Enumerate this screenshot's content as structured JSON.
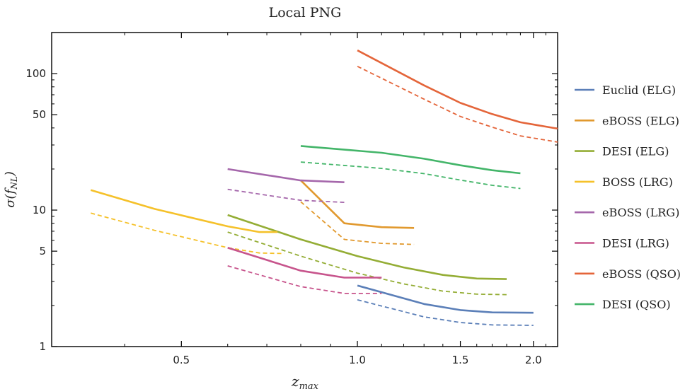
{
  "chart_data": {
    "type": "line",
    "title": "Local PNG",
    "xlabel": "z_max",
    "ylabel": "σ(f_NL)",
    "x_scale": "log",
    "y_scale": "log",
    "xlim": [
      0.3,
      2.2
    ],
    "ylim": [
      1,
      200
    ],
    "xticks": [
      {
        "value": 0.5,
        "label": "0.5"
      },
      {
        "value": 1.0,
        "label": "1.0"
      },
      {
        "value": 1.5,
        "label": "1.5"
      },
      {
        "value": 2.0,
        "label": "2.0"
      }
    ],
    "yticks": [
      {
        "value": 1,
        "label": "1"
      },
      {
        "value": 5,
        "label": "5"
      },
      {
        "value": 10,
        "label": "10"
      },
      {
        "value": 50,
        "label": "50"
      },
      {
        "value": 100,
        "label": "100"
      }
    ],
    "legend_position": "right",
    "linestyle_note": "solid and dashed lines per survey",
    "series": [
      {
        "name": "Euclid (ELG)",
        "color": "#5B7FB8",
        "solid": {
          "x": [
            1.0,
            1.3,
            1.5,
            1.7,
            2.0
          ],
          "y": [
            2.8,
            2.05,
            1.85,
            1.78,
            1.77
          ]
        },
        "dashed": {
          "x": [
            1.0,
            1.3,
            1.5,
            1.7,
            2.0
          ],
          "y": [
            2.2,
            1.65,
            1.5,
            1.44,
            1.43
          ]
        }
      },
      {
        "name": "eBOSS (ELG)",
        "color": "#E1992E",
        "solid": {
          "x": [
            0.8,
            0.95,
            1.1,
            1.25
          ],
          "y": [
            16.5,
            8.0,
            7.5,
            7.4
          ]
        },
        "dashed": {
          "x": [
            0.8,
            0.95,
            1.1,
            1.25
          ],
          "y": [
            11.5,
            6.1,
            5.7,
            5.6
          ]
        }
      },
      {
        "name": "DESI (ELG)",
        "color": "#94AD35",
        "solid": {
          "x": [
            0.6,
            0.8,
            1.0,
            1.2,
            1.4,
            1.6,
            1.8
          ],
          "y": [
            9.2,
            6.1,
            4.6,
            3.8,
            3.35,
            3.15,
            3.12
          ]
        },
        "dashed": {
          "x": [
            0.6,
            0.8,
            1.0,
            1.2,
            1.4,
            1.6,
            1.8
          ],
          "y": [
            6.9,
            4.6,
            3.45,
            2.88,
            2.55,
            2.42,
            2.4
          ]
        }
      },
      {
        "name": "BOSS (LRG)",
        "color": "#F5C12A",
        "solid": {
          "x": [
            0.35,
            0.45,
            0.6,
            0.68,
            0.73
          ],
          "y": [
            14.0,
            10.2,
            7.6,
            6.9,
            6.9
          ]
        },
        "dashed": {
          "x": [
            0.35,
            0.45,
            0.6,
            0.68,
            0.75
          ],
          "y": [
            9.5,
            7.1,
            5.3,
            4.85,
            4.8
          ]
        }
      },
      {
        "name": "eBOSS (LRG)",
        "color": "#A567AB",
        "solid": {
          "x": [
            0.6,
            0.8,
            0.95
          ],
          "y": [
            20.0,
            16.5,
            16.0
          ]
        },
        "dashed": {
          "x": [
            0.6,
            0.8,
            0.95
          ],
          "y": [
            14.2,
            11.8,
            11.4
          ]
        }
      },
      {
        "name": "DESI (LRG)",
        "color": "#C7548C",
        "solid": {
          "x": [
            0.6,
            0.8,
            0.95,
            1.1
          ],
          "y": [
            5.3,
            3.6,
            3.2,
            3.2
          ]
        },
        "dashed": {
          "x": [
            0.6,
            0.8,
            0.95,
            1.1
          ],
          "y": [
            3.9,
            2.75,
            2.45,
            2.45
          ]
        }
      },
      {
        "name": "eBOSS (QSO)",
        "color": "#E4653A",
        "solid": {
          "x": [
            1.0,
            1.3,
            1.5,
            1.7,
            1.9,
            2.2
          ],
          "y": [
            148.0,
            82.0,
            61.0,
            50.5,
            44.0,
            39.5
          ]
        },
        "dashed": {
          "x": [
            1.0,
            1.3,
            1.5,
            1.7,
            1.9,
            2.2
          ],
          "y": [
            113.0,
            65.0,
            48.5,
            40.5,
            35.0,
            31.5
          ]
        }
      },
      {
        "name": "DESI (QSO)",
        "color": "#43B569",
        "solid": {
          "x": [
            0.8,
            1.1,
            1.3,
            1.5,
            1.7,
            1.9
          ],
          "y": [
            29.5,
            26.3,
            23.8,
            21.3,
            19.6,
            18.6
          ]
        },
        "dashed": {
          "x": [
            0.8,
            1.1,
            1.3,
            1.5,
            1.7,
            1.9
          ],
          "y": [
            22.5,
            20.2,
            18.5,
            16.6,
            15.2,
            14.4
          ]
        }
      }
    ]
  }
}
